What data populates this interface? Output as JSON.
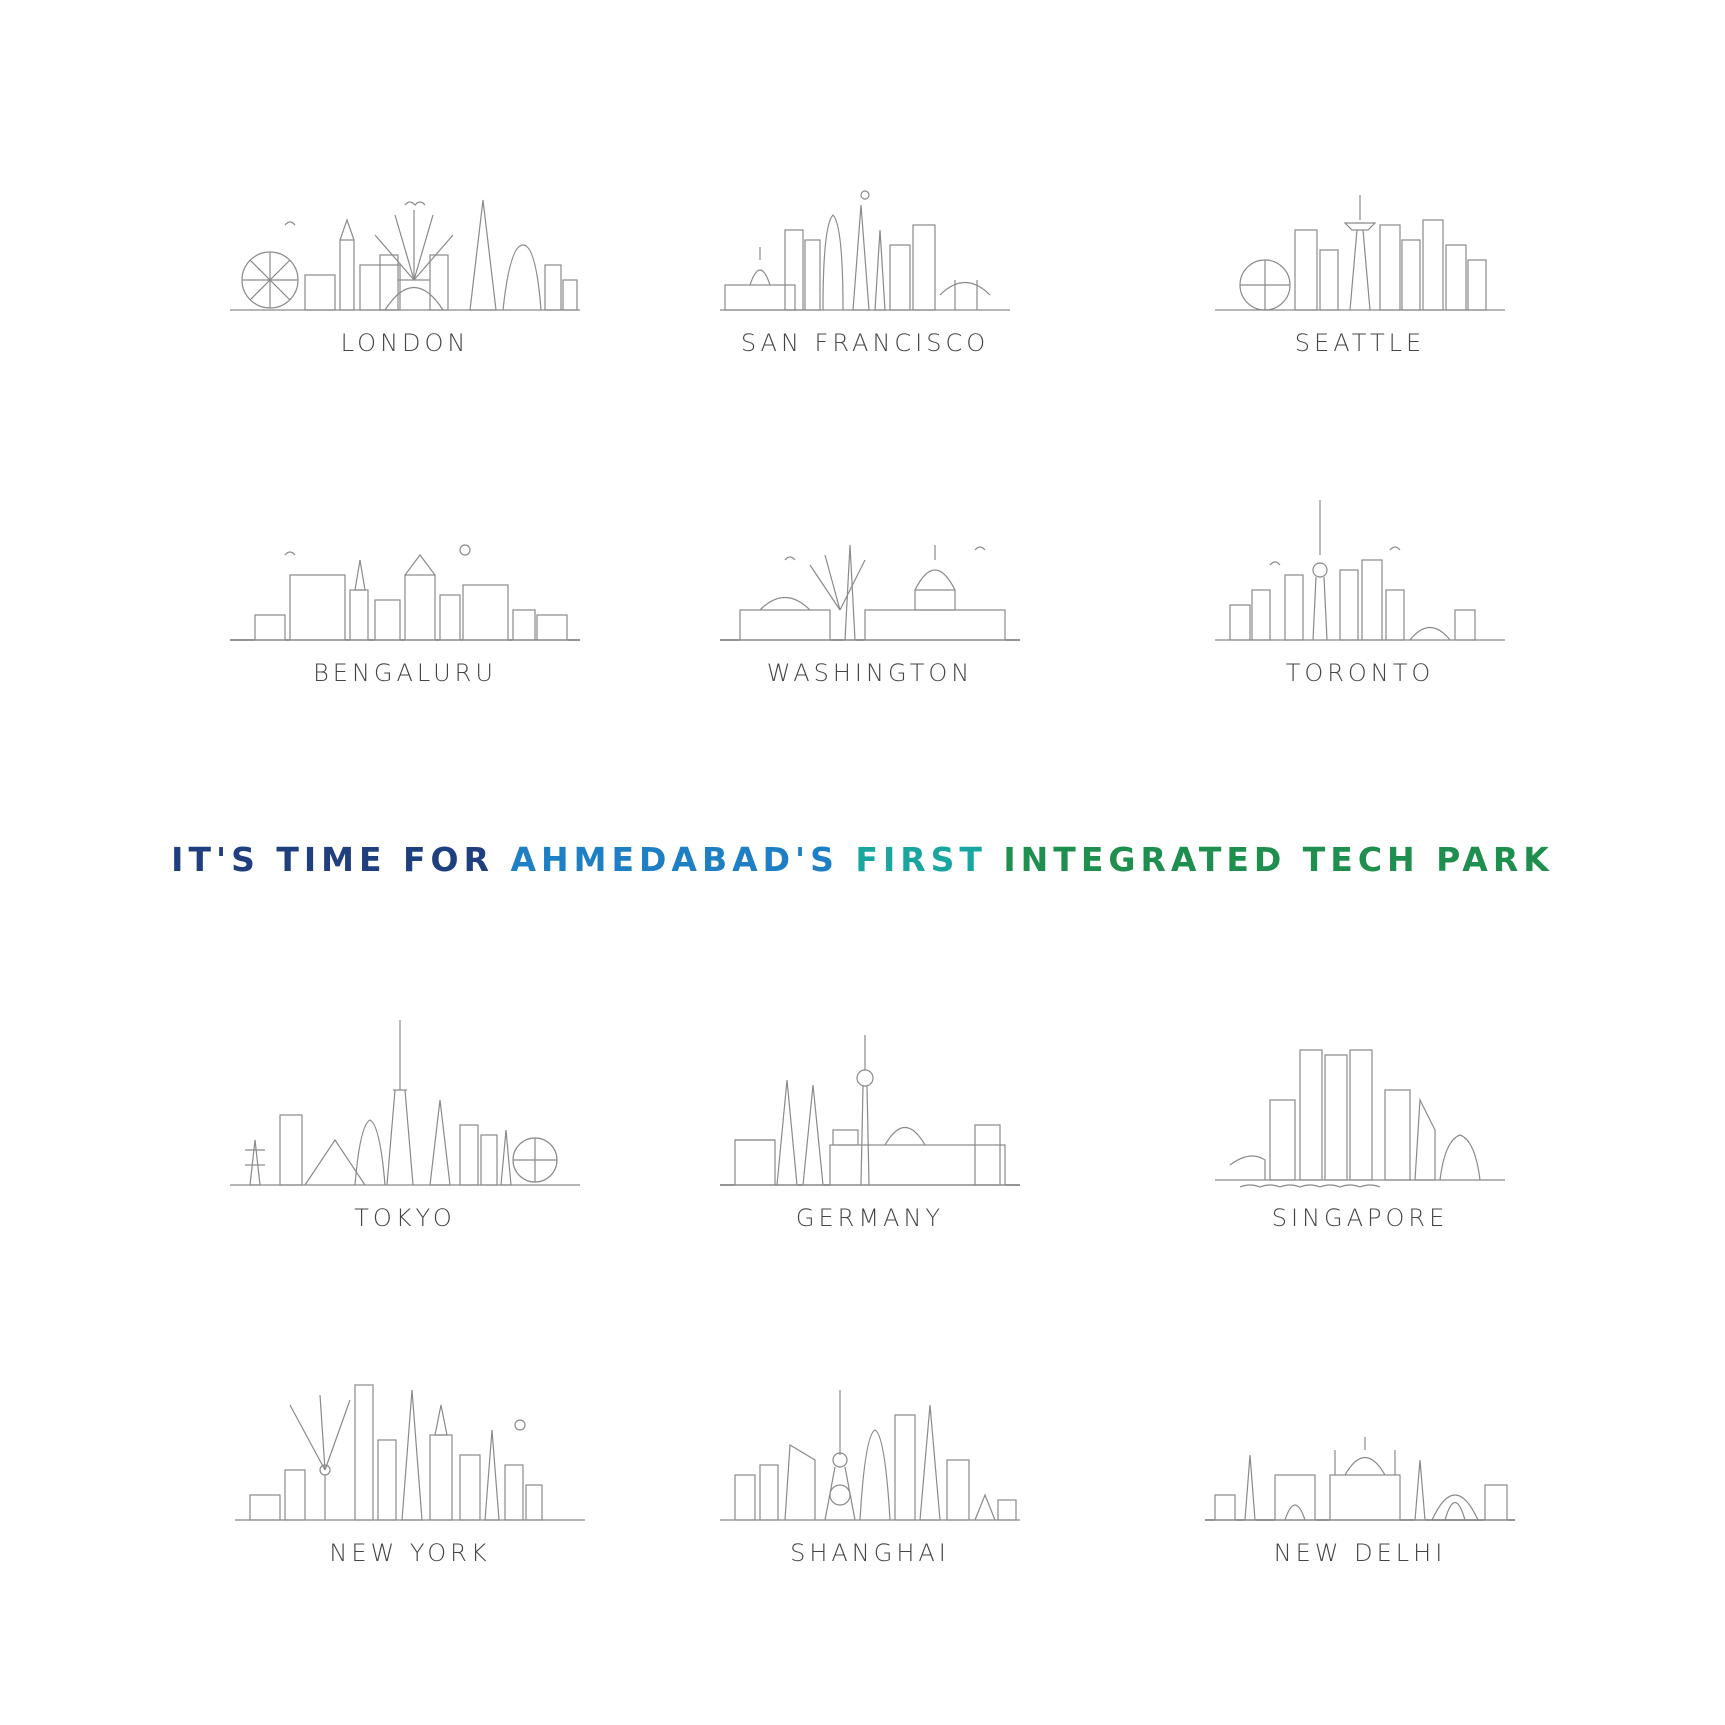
{
  "headline": {
    "part1": "IT'S TIME FOR ",
    "part2": "AHMEDABAD'S ",
    "part3": "FIRST ",
    "part4": "INTEGRATED TECH PARK",
    "colors": [
      "#1f3f7f",
      "#1f7fc4",
      "#1aa6a0",
      "#1f8f4f"
    ]
  },
  "cities": [
    {
      "name": "LONDON",
      "icon": "london-skyline-icon"
    },
    {
      "name": "SAN FRANCISCO",
      "icon": "san-francisco-skyline-icon"
    },
    {
      "name": "SEATTLE",
      "icon": "seattle-skyline-icon"
    },
    {
      "name": "BENGALURU",
      "icon": "bengaluru-skyline-icon"
    },
    {
      "name": "WASHINGTON",
      "icon": "washington-skyline-icon"
    },
    {
      "name": "TORONTO",
      "icon": "toronto-skyline-icon"
    },
    {
      "name": "TOKYO",
      "icon": "tokyo-skyline-icon"
    },
    {
      "name": "GERMANY",
      "icon": "germany-skyline-icon"
    },
    {
      "name": "SINGAPORE",
      "icon": "singapore-skyline-icon"
    },
    {
      "name": "NEW YORK",
      "icon": "new-york-skyline-icon"
    },
    {
      "name": "SHANGHAI",
      "icon": "shanghai-skyline-icon"
    },
    {
      "name": "NEW DELHI",
      "icon": "new-delhi-skyline-icon"
    }
  ]
}
